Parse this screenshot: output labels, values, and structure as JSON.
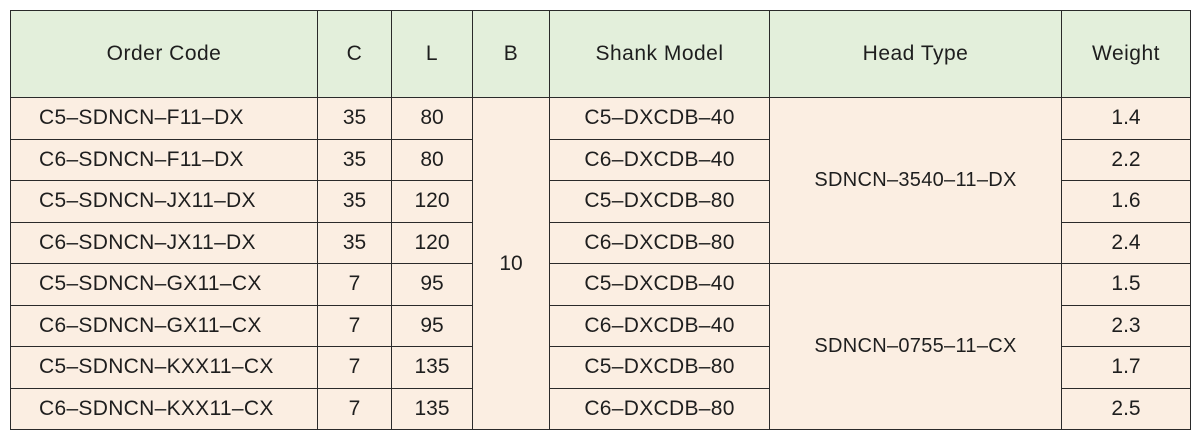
{
  "headers": {
    "order_code": "Order Code",
    "c": "C",
    "l": "L",
    "b": "B",
    "shank_model": "Shank Model",
    "head_type": "Head Type",
    "weight": "Weight"
  },
  "b_value": "10",
  "head_types": [
    "SDNCN–3540–11–DX",
    "SDNCN–0755–11–CX"
  ],
  "rows": [
    {
      "order_code": "C5–SDNCN–F11–DX",
      "c": "35",
      "l": "80",
      "shank": "C5–DXCDB–40",
      "weight": "1.4"
    },
    {
      "order_code": "C6–SDNCN–F11–DX",
      "c": "35",
      "l": "80",
      "shank": "C6–DXCDB–40",
      "weight": "2.2"
    },
    {
      "order_code": "C5–SDNCN–JX11–DX",
      "c": "35",
      "l": "120",
      "shank": "C5–DXCDB–80",
      "weight": "1.6"
    },
    {
      "order_code": "C6–SDNCN–JX11–DX",
      "c": "35",
      "l": "120",
      "shank": "C6–DXCDB–80",
      "weight": "2.4"
    },
    {
      "order_code": "C5–SDNCN–GX11–CX",
      "c": "7",
      "l": "95",
      "shank": "C5–DXCDB–40",
      "weight": "1.5"
    },
    {
      "order_code": "C6–SDNCN–GX11–CX",
      "c": "7",
      "l": "95",
      "shank": "C6–DXCDB–40",
      "weight": "2.3"
    },
    {
      "order_code": "C5–SDNCN–KXX11–CX",
      "c": "7",
      "l": "135",
      "shank": "C5–DXCDB–80",
      "weight": "1.7"
    },
    {
      "order_code": "C6–SDNCN–KXX11–CX",
      "c": "7",
      "l": "135",
      "shank": "C6–DXCDB–80",
      "weight": "2.5"
    }
  ]
}
